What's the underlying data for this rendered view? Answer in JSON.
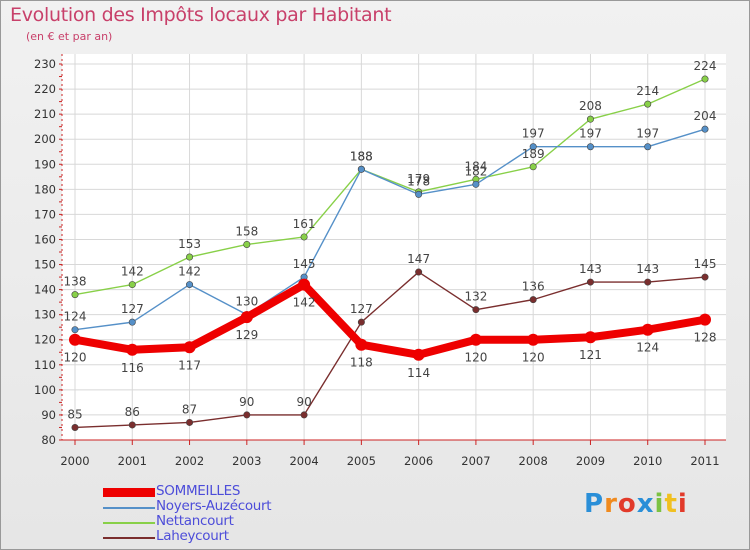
{
  "chart_data": {
    "type": "line",
    "title": "Evolution des Impôts locaux par Habitant",
    "subtitle": "(en € et par an)",
    "categories": [
      "2000",
      "2001",
      "2002",
      "2003",
      "2004",
      "2005",
      "2006",
      "2007",
      "2008",
      "2009",
      "2010",
      "2011"
    ],
    "ylim": [
      80,
      230
    ],
    "yticks": [
      80,
      90,
      100,
      110,
      120,
      130,
      140,
      150,
      160,
      170,
      180,
      190,
      200,
      210,
      220,
      230
    ],
    "grid": true,
    "legend_position": "bottom-left",
    "series": [
      {
        "name": "SOMMEILLES",
        "color": "#ee0000",
        "values": [
          120,
          116,
          117,
          129,
          142,
          118,
          114,
          120,
          120,
          121,
          124,
          128
        ]
      },
      {
        "name": "Noyers-Auzécourt",
        "color": "#5590c8",
        "values": [
          124,
          127,
          142,
          130,
          145,
          188,
          178,
          182,
          197,
          197,
          197,
          204
        ]
      },
      {
        "name": "Nettancourt",
        "color": "#88d048",
        "values": [
          138,
          142,
          153,
          158,
          161,
          188,
          179,
          184,
          189,
          208,
          214,
          224
        ]
      },
      {
        "name": "Laheycourt",
        "color": "#7a2e2e",
        "values": [
          85,
          86,
          87,
          90,
          90,
          127,
          147,
          132,
          136,
          143,
          143,
          145
        ]
      }
    ]
  },
  "logo": {
    "text": "Proxiti"
  }
}
